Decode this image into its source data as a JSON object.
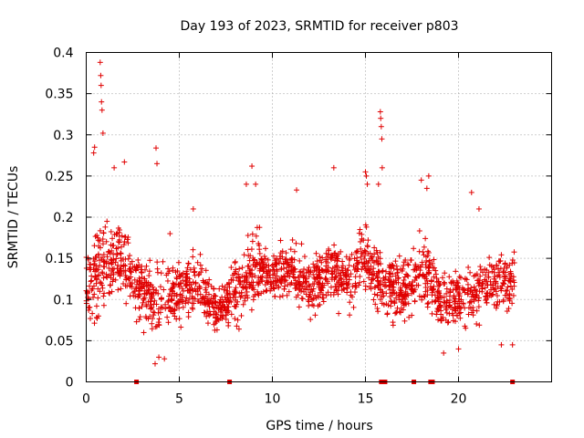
{
  "chart_data": {
    "type": "scatter",
    "title": "Day 193 of 2023, SRMTID for receiver p803",
    "xlabel": "GPS time / hours",
    "ylabel": "SRMTID / TECUs",
    "xlim": [
      0,
      25
    ],
    "ylim": [
      0,
      0.4
    ],
    "x_ticks": [
      0,
      5,
      10,
      15,
      20
    ],
    "x_tick_labels": [
      "0",
      "5",
      "10",
      "15",
      "20"
    ],
    "y_ticks": [
      0,
      0.05,
      0.1,
      0.15,
      0.2,
      0.25,
      0.3,
      0.35,
      0.4
    ],
    "y_tick_labels": [
      "0",
      "0.05",
      "0.1",
      "0.15",
      "0.2",
      "0.25",
      "0.3",
      "0.35",
      "0.4"
    ],
    "grid": true,
    "marker": "plus",
    "color": "#e00000",
    "series": [
      {
        "name": "SRMTID",
        "trend": [
          {
            "t": 0.0,
            "mean": 0.12,
            "spread": 0.035
          },
          {
            "t": 0.5,
            "mean": 0.13,
            "spread": 0.05
          },
          {
            "t": 1.0,
            "mean": 0.14,
            "spread": 0.05
          },
          {
            "t": 2.0,
            "mean": 0.15,
            "spread": 0.04
          },
          {
            "t": 2.8,
            "mean": 0.11,
            "spread": 0.035
          },
          {
            "t": 4.0,
            "mean": 0.1,
            "spread": 0.04
          },
          {
            "t": 5.0,
            "mean": 0.11,
            "spread": 0.035
          },
          {
            "t": 6.0,
            "mean": 0.12,
            "spread": 0.035
          },
          {
            "t": 7.0,
            "mean": 0.085,
            "spread": 0.025
          },
          {
            "t": 8.0,
            "mean": 0.11,
            "spread": 0.035
          },
          {
            "t": 9.0,
            "mean": 0.14,
            "spread": 0.04
          },
          {
            "t": 10.0,
            "mean": 0.13,
            "spread": 0.025
          },
          {
            "t": 11.0,
            "mean": 0.14,
            "spread": 0.03
          },
          {
            "t": 12.0,
            "mean": 0.11,
            "spread": 0.035
          },
          {
            "t": 13.0,
            "mean": 0.14,
            "spread": 0.035
          },
          {
            "t": 14.0,
            "mean": 0.12,
            "spread": 0.035
          },
          {
            "t": 15.0,
            "mean": 0.15,
            "spread": 0.04
          },
          {
            "t": 16.0,
            "mean": 0.12,
            "spread": 0.035
          },
          {
            "t": 17.0,
            "mean": 0.11,
            "spread": 0.035
          },
          {
            "t": 18.0,
            "mean": 0.14,
            "spread": 0.04
          },
          {
            "t": 19.0,
            "mean": 0.1,
            "spread": 0.035
          },
          {
            "t": 20.0,
            "mean": 0.1,
            "spread": 0.03
          },
          {
            "t": 21.0,
            "mean": 0.11,
            "spread": 0.035
          },
          {
            "t": 22.0,
            "mean": 0.12,
            "spread": 0.035
          },
          {
            "t": 23.0,
            "mean": 0.12,
            "spread": 0.035
          }
        ],
        "notable_points": [
          {
            "x": 0.75,
            "y": 0.388
          },
          {
            "x": 0.78,
            "y": 0.372
          },
          {
            "x": 0.8,
            "y": 0.36
          },
          {
            "x": 0.82,
            "y": 0.34
          },
          {
            "x": 0.85,
            "y": 0.33
          },
          {
            "x": 0.9,
            "y": 0.302
          },
          {
            "x": 0.4,
            "y": 0.278
          },
          {
            "x": 0.45,
            "y": 0.285
          },
          {
            "x": 1.5,
            "y": 0.26
          },
          {
            "x": 2.05,
            "y": 0.267
          },
          {
            "x": 3.75,
            "y": 0.284
          },
          {
            "x": 3.8,
            "y": 0.265
          },
          {
            "x": 3.7,
            "y": 0.022
          },
          {
            "x": 3.9,
            "y": 0.03
          },
          {
            "x": 4.2,
            "y": 0.028
          },
          {
            "x": 4.5,
            "y": 0.18
          },
          {
            "x": 5.75,
            "y": 0.21
          },
          {
            "x": 8.6,
            "y": 0.24
          },
          {
            "x": 8.9,
            "y": 0.262
          },
          {
            "x": 9.1,
            "y": 0.24
          },
          {
            "x": 11.3,
            "y": 0.233
          },
          {
            "x": 13.3,
            "y": 0.26
          },
          {
            "x": 15.0,
            "y": 0.255
          },
          {
            "x": 15.05,
            "y": 0.25
          },
          {
            "x": 15.1,
            "y": 0.24
          },
          {
            "x": 15.8,
            "y": 0.328
          },
          {
            "x": 15.82,
            "y": 0.32
          },
          {
            "x": 15.85,
            "y": 0.31
          },
          {
            "x": 15.88,
            "y": 0.295
          },
          {
            "x": 15.9,
            "y": 0.26
          },
          {
            "x": 15.7,
            "y": 0.24
          },
          {
            "x": 18.0,
            "y": 0.245
          },
          {
            "x": 18.4,
            "y": 0.25
          },
          {
            "x": 18.3,
            "y": 0.235
          },
          {
            "x": 20.7,
            "y": 0.23
          },
          {
            "x": 21.1,
            "y": 0.21
          },
          {
            "x": 19.2,
            "y": 0.035
          },
          {
            "x": 20.0,
            "y": 0.04
          },
          {
            "x": 22.9,
            "y": 0.045
          },
          {
            "x": 22.3,
            "y": 0.045
          }
        ],
        "zero_points": [
          2.7,
          7.7,
          15.85,
          16.05,
          17.6,
          18.5,
          18.6,
          22.9
        ]
      }
    ]
  }
}
